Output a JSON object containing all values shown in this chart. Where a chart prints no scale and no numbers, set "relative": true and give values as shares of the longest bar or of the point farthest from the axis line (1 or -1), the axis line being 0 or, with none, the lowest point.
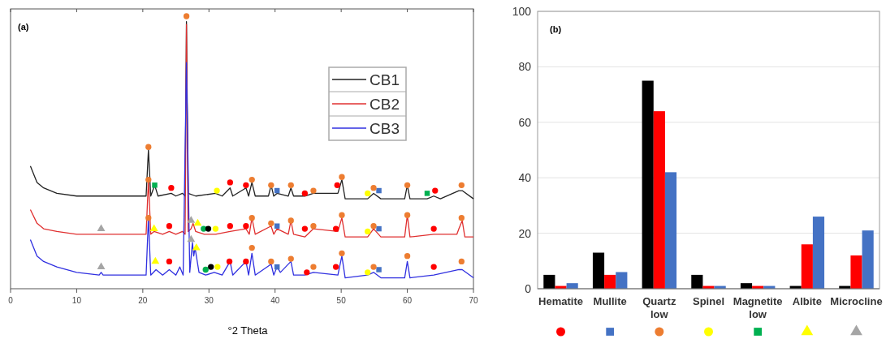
{
  "chart_data": [
    {
      "type": "line",
      "relative": true,
      "xlabel": "°2 Theta",
      "xlim": [
        0,
        70
      ],
      "xticks": [
        0,
        10,
        20,
        30,
        40,
        50,
        60,
        70
      ],
      "legend": "top right",
      "line_style": "solid",
      "annotations": [
        "(a)"
      ],
      "series": [
        {
          "name": "CB1",
          "color": "#222222",
          "x": [
            3,
            4,
            5,
            7,
            10,
            15,
            20.5,
            20.85,
            21.2,
            21.8,
            22.3,
            24.3,
            25,
            26,
            26.4,
            26.6,
            26.85,
            28,
            31,
            32,
            33.2,
            33.6,
            35.6,
            36,
            36.5,
            37,
            39,
            39.4,
            39.8,
            40.3,
            42,
            42.4,
            42.8,
            44.5,
            45.8,
            49.5,
            50.1,
            50.6,
            54,
            54.9,
            56,
            59.6,
            60,
            60.4,
            63,
            64,
            65,
            67.8,
            68.3,
            70
          ],
          "values": [
            0.45,
            0.39,
            0.37,
            0.35,
            0.34,
            0.34,
            0.34,
            0.51,
            0.34,
            0.38,
            0.34,
            0.35,
            0.34,
            0.35,
            0.34,
            0.98,
            0.35,
            0.34,
            0.35,
            0.34,
            0.37,
            0.34,
            0.37,
            0.34,
            0.39,
            0.34,
            0.34,
            0.38,
            0.34,
            0.35,
            0.34,
            0.37,
            0.34,
            0.34,
            0.35,
            0.35,
            0.4,
            0.33,
            0.33,
            0.35,
            0.33,
            0.33,
            0.38,
            0.33,
            0.33,
            0.34,
            0.33,
            0.36,
            0.36,
            0.33
          ]
        },
        {
          "name": "CB2",
          "color": "#e03030",
          "x": [
            3,
            4,
            5,
            7,
            10,
            13.7,
            20.5,
            20.85,
            21.2,
            21.7,
            23,
            24,
            25,
            26,
            26.4,
            26.6,
            26.85,
            27.3,
            27.6,
            28,
            29.3,
            31,
            33.2,
            35.6,
            36.1,
            36.5,
            37,
            39.4,
            39.8,
            40.3,
            42,
            42.4,
            42.8,
            44.5,
            45.8,
            49.5,
            50.1,
            50.6,
            54,
            54.9,
            56,
            59.6,
            60,
            60.4,
            64,
            67.5,
            67.8,
            68.3,
            68.7,
            70
          ],
          "values": [
            0.29,
            0.24,
            0.22,
            0.21,
            0.2,
            0.2,
            0.2,
            0.4,
            0.2,
            0.21,
            0.2,
            0.21,
            0.2,
            0.21,
            0.2,
            0.97,
            0.21,
            0.22,
            0.24,
            0.21,
            0.2,
            0.2,
            0.21,
            0.22,
            0.2,
            0.26,
            0.2,
            0.23,
            0.2,
            0.22,
            0.2,
            0.25,
            0.2,
            0.19,
            0.22,
            0.21,
            0.26,
            0.19,
            0.19,
            0.22,
            0.19,
            0.19,
            0.27,
            0.19,
            0.2,
            0.2,
            0.22,
            0.25,
            0.19,
            0.19
          ]
        },
        {
          "name": "CB3",
          "color": "#3030e0",
          "x": [
            3,
            4,
            5,
            7,
            10,
            13.4,
            13.7,
            14,
            20.5,
            20.85,
            21.2,
            22,
            23,
            24,
            25,
            25.6,
            26.1,
            26.6,
            27.1,
            27.5,
            27.7,
            27.9,
            28.5,
            29.5,
            30.8,
            32,
            33.2,
            33.6,
            35.6,
            36,
            36.5,
            37,
            39.4,
            39.8,
            40.3,
            40.8,
            42.4,
            42.8,
            44.5,
            45.8,
            49.5,
            50.1,
            50.6,
            54,
            54.9,
            56,
            59.6,
            60,
            60.4,
            64,
            67.8,
            68.3,
            70
          ],
          "values": [
            0.18,
            0.12,
            0.1,
            0.08,
            0.06,
            0.05,
            0.06,
            0.05,
            0.05,
            0.26,
            0.05,
            0.07,
            0.05,
            0.07,
            0.05,
            0.08,
            0.05,
            0.83,
            0.06,
            0.17,
            0.12,
            0.15,
            0.06,
            0.05,
            0.06,
            0.05,
            0.1,
            0.05,
            0.1,
            0.05,
            0.13,
            0.05,
            0.09,
            0.05,
            0.08,
            0.06,
            0.1,
            0.05,
            0.05,
            0.06,
            0.05,
            0.12,
            0.04,
            0.05,
            0.06,
            0.04,
            0.04,
            0.1,
            0.04,
            0.05,
            0.07,
            0.07,
            0.04
          ]
        },
        {
          "type": "scatter",
          "marker": "circle",
          "color": "#ff0000",
          "x": [
            24.3,
            33.2,
            35.6,
            44.5,
            49.4,
            64.2,
            24,
            33.2,
            35.6,
            44.5,
            49.2,
            64,
            24,
            33.1,
            35.6,
            44.8,
            49.2,
            64
          ],
          "values": [
            0.37,
            0.39,
            0.38,
            0.35,
            0.38,
            0.36,
            0.23,
            0.23,
            0.23,
            0.22,
            0.22,
            0.22,
            0.1,
            0.1,
            0.1,
            0.06,
            0.08,
            0.08
          ]
        },
        {
          "type": "scatter",
          "marker": "square",
          "color": "#4472c4",
          "x": [
            40.3,
            55.7,
            40.3,
            55.7,
            40.3,
            55.7
          ],
          "values": [
            0.36,
            0.36,
            0.23,
            0.22,
            0.08,
            0.07
          ]
        },
        {
          "type": "scatter",
          "marker": "circle",
          "color": "#ed7d31",
          "x": [
            20.85,
            26.6,
            36.5,
            39.4,
            42.4,
            45.8,
            50.1,
            54.9,
            60,
            68.2,
            20.85,
            36.5,
            39.4,
            42.4,
            45.8,
            50.1,
            54.9,
            60,
            68.2,
            20.85,
            36.5,
            39.4,
            42.4,
            45.8,
            50.1,
            54.9,
            60,
            68.2
          ],
          "values": [
            0.52,
            1,
            0.4,
            0.38,
            0.38,
            0.36,
            0.41,
            0.37,
            0.38,
            0.38,
            0.4,
            0.26,
            0.24,
            0.25,
            0.23,
            0.27,
            0.23,
            0.27,
            0.26,
            0.26,
            0.15,
            0.1,
            0.11,
            0.08,
            0.13,
            0.08,
            0.12,
            0.1
          ]
        },
        {
          "type": "scatter",
          "marker": "circle",
          "color": "#ffff00",
          "x": [
            31.2,
            54,
            31,
            54,
            31.3,
            54
          ],
          "values": [
            0.36,
            0.35,
            0.22,
            0.21,
            0.08,
            0.06
          ]
        },
        {
          "type": "scatter",
          "marker": "square",
          "color": "#00b050",
          "x": [
            21.8,
            63
          ],
          "values": [
            0.38,
            0.35
          ]
        },
        {
          "type": "scatter",
          "marker": "triangle",
          "color": "#ffff00",
          "x": [
            21.7,
            28.3,
            21.9,
            28.1
          ],
          "values": [
            0.22,
            0.24,
            0.1,
            0.15
          ]
        },
        {
          "type": "scatter",
          "marker": "triangle",
          "color": "#a5a5a5",
          "x": [
            13.7,
            27.3,
            13.7,
            27.3
          ],
          "values": [
            0.22,
            0.25,
            0.08,
            0.18
          ]
        },
        {
          "type": "scatter",
          "marker": "circle",
          "color": "#00b050",
          "x": [
            29.2,
            29.5
          ],
          "values": [
            0.22,
            0.07
          ]
        },
        {
          "type": "scatter",
          "marker": "circle",
          "color": "#000000",
          "x": [
            29.9,
            30.3
          ],
          "values": [
            0.22,
            0.08
          ]
        }
      ]
    },
    {
      "type": "bar",
      "categories": [
        "Hematite",
        "Mullite",
        "Quartz low",
        "Spinel",
        "Magnetite low",
        "Albite",
        "Microcline"
      ],
      "ylim": [
        0,
        100
      ],
      "yticks": [
        0,
        20,
        40,
        60,
        80,
        100
      ],
      "grid": "y",
      "annotations": [
        "(b)"
      ],
      "series": [
        {
          "color": "#000000",
          "values": [
            5,
            13,
            75,
            5,
            2,
            1,
            1
          ]
        },
        {
          "color": "#ff0000",
          "values": [
            1,
            5,
            64,
            1,
            1,
            16,
            12
          ]
        },
        {
          "color": "#4472c4",
          "values": [
            2,
            6,
            42,
            1,
            1,
            26,
            21
          ]
        }
      ]
    }
  ]
}
